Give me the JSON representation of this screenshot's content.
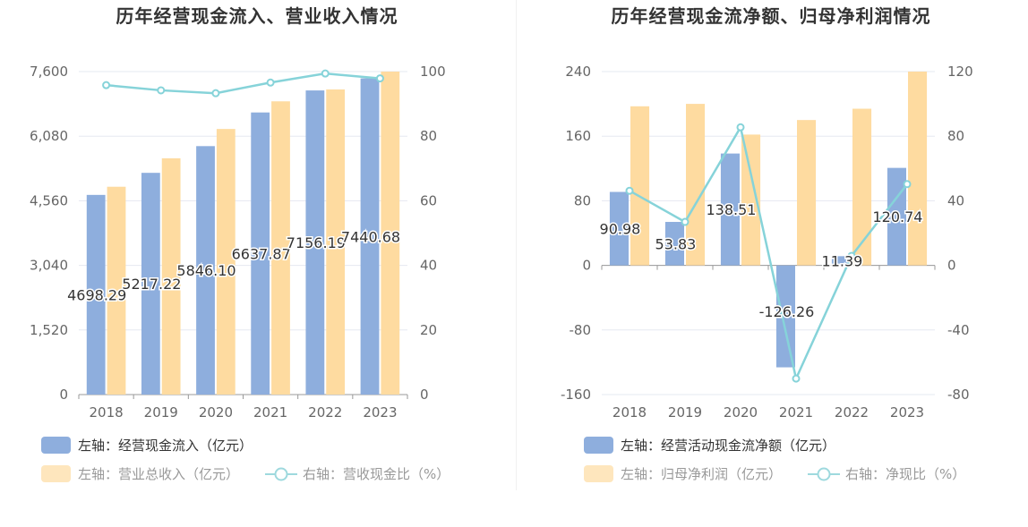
{
  "colors": {
    "bar_primary": "#8eaedd",
    "bar_secondary": "#fedba0",
    "line": "#86d3d9",
    "axis_text": "#666666",
    "grid": "#e6e8f1",
    "label_text": "#333333"
  },
  "left": {
    "title": "历年经营现金流入、营业收入情况",
    "legend": {
      "bar1": "左轴：经营现金流入（亿元）",
      "bar2": "左轴：营业总收入（亿元）",
      "line": "右轴：营收现金比（%）"
    }
  },
  "right": {
    "title": "历年经营现金流净额、归母净利润情况",
    "legend": {
      "bar1": "左轴：经营活动现金流净额（亿元）",
      "bar2": "左轴：归母净利润（亿元）",
      "line": "右轴：净现比（%）"
    }
  },
  "chart_data": [
    {
      "type": "bar",
      "title": "历年经营现金流入、营业收入情况",
      "categories": [
        "2018",
        "2019",
        "2020",
        "2021",
        "2022",
        "2023"
      ],
      "y_left": {
        "ticks": [
          "0",
          "1,520",
          "3,040",
          "4,560",
          "6,080",
          "7,600"
        ],
        "range": [
          0,
          7600
        ]
      },
      "y_right": {
        "ticks": [
          "0",
          "20",
          "40",
          "60",
          "80",
          "100"
        ],
        "range": [
          0,
          100
        ]
      },
      "series": [
        {
          "name": "左轴：经营现金流入（亿元）",
          "axis": "left",
          "type": "bar",
          "values": [
            4698.29,
            5217.22,
            5846.1,
            6637.87,
            7156.19,
            7440.68
          ],
          "labels": [
            "4698.29",
            "5217.22",
            "5846.10",
            "6637.87",
            "7156.19",
            "7440.68"
          ]
        },
        {
          "name": "左轴：营业总收入（亿元）",
          "axis": "left",
          "type": "bar",
          "values": [
            4890,
            5560,
            6250,
            6900,
            7180,
            7600
          ]
        },
        {
          "name": "右轴：营收现金比（%）",
          "axis": "right",
          "type": "line",
          "values": [
            95.8,
            94.2,
            93.3,
            96.6,
            99.4,
            97.9
          ]
        }
      ],
      "grid": true,
      "legend_position": "bottom"
    },
    {
      "type": "bar",
      "title": "历年经营现金流净额、归母净利润情况",
      "categories": [
        "2018",
        "2019",
        "2020",
        "2021",
        "2022",
        "2023"
      ],
      "y_left": {
        "ticks": [
          "-160",
          "-80",
          "0",
          "80",
          "160",
          "240"
        ],
        "range": [
          -160,
          240
        ]
      },
      "y_right": {
        "ticks": [
          "-80",
          "-40",
          "0",
          "40",
          "80",
          "120"
        ],
        "range": [
          -80,
          120
        ]
      },
      "series": [
        {
          "name": "左轴：经营活动现金流净额（亿元）",
          "axis": "left",
          "type": "bar",
          "values": [
            90.98,
            53.83,
            138.51,
            -126.26,
            11.39,
            120.74
          ],
          "labels": [
            "90.98",
            "53.83",
            "138.51",
            "-126.26",
            "11.39",
            "120.74"
          ]
        },
        {
          "name": "左轴：归母净利润（亿元）",
          "axis": "left",
          "type": "bar",
          "values": [
            197,
            200,
            162,
            180,
            194,
            240
          ]
        },
        {
          "name": "右轴：净现比（%）",
          "axis": "right",
          "type": "line",
          "values": [
            46.2,
            26.9,
            85.5,
            -70.1,
            5.9,
            50.3
          ]
        }
      ],
      "grid": true,
      "legend_position": "bottom"
    }
  ]
}
